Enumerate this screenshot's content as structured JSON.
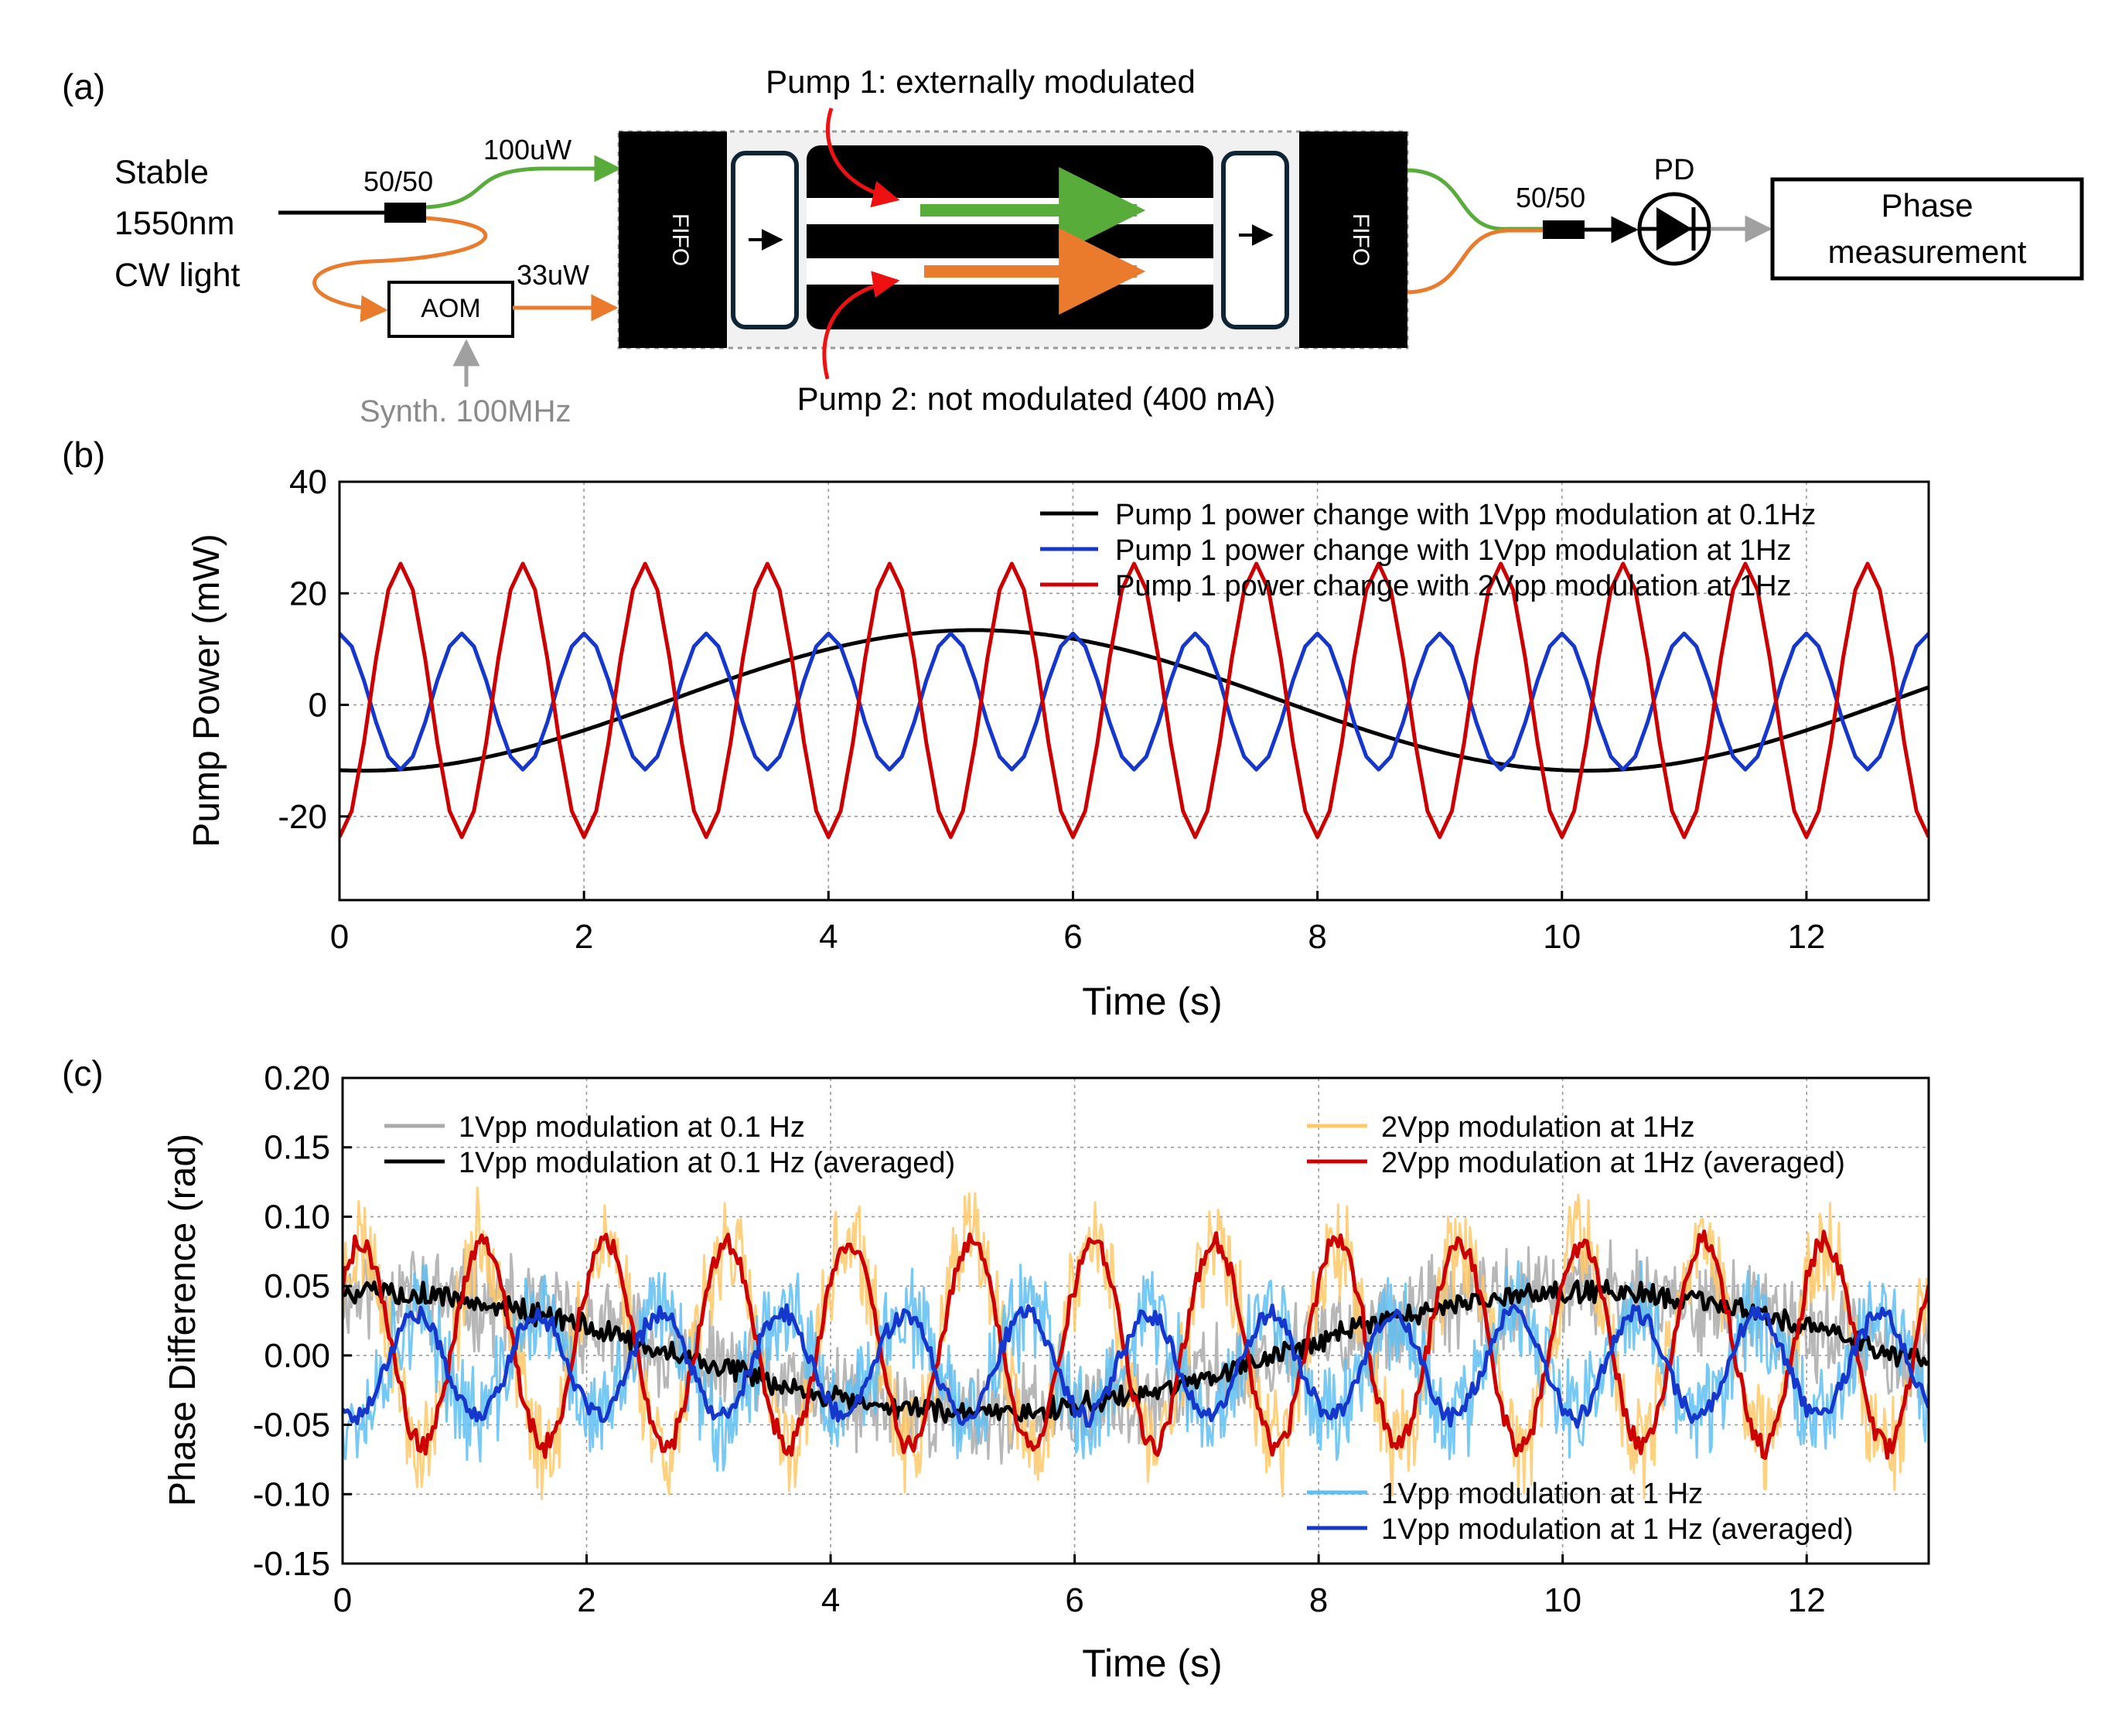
{
  "panel_labels": {
    "a": "(a)",
    "b": "(b)",
    "c": "(c)"
  },
  "diagram": {
    "source_label": [
      "Stable",
      "1550nm",
      "CW light"
    ],
    "splitter_in_label": "50/50",
    "splitter_out_label": "50/50",
    "power_upper_label": "100uW",
    "power_lower_label": "33uW",
    "aom_label": "AOM",
    "synth_label": "Synth. 100MHz",
    "fifo_left_label": "FIFO",
    "fifo_right_label": "FIFO",
    "pump1_label": "Pump 1: externally modulated",
    "pump2_label": "Pump 2: not modulated (400 mA)",
    "pd_label": "PD",
    "phase_box_label": [
      "Phase",
      "measurement"
    ]
  },
  "colors": {
    "black": "#000000",
    "blue": "#1537cc",
    "red": "#cc0000",
    "gray": "#aaaaaa",
    "orange_light": "#ffc968",
    "lightblue": "#5ec0f2",
    "green": "#58ad3a",
    "orange": "#ea7b2c",
    "arrow_red": "#ee1111"
  },
  "chart_data": [
    {
      "id": "b",
      "type": "line",
      "xlabel": "Time (s)",
      "ylabel": "Pump Power (mW)",
      "xlim": [
        0,
        13
      ],
      "ylim": [
        -35,
        40
      ],
      "xticks": [
        0,
        2,
        4,
        6,
        8,
        10,
        12
      ],
      "yticks": [
        -20,
        0,
        20,
        40
      ],
      "grid": true,
      "legend_position": "top-right",
      "series": [
        {
          "name": "Pump 1 power change with 1Vpp modulation at 0.1Hz",
          "color": "#000000",
          "freq_hz": 0.1,
          "amplitude": 12.6,
          "offset": 0.8,
          "phase_peak_s": 5.2,
          "sample_dt": 0.02
        },
        {
          "name": "Pump 1 power change with 1Vpp modulation at 1Hz",
          "color": "#1537cc",
          "freq_hz": 1.0,
          "amplitude": 12.2,
          "offset": 0.6,
          "phase_peak_s": 0.0,
          "sample_dt": 0.1
        },
        {
          "name": "Pump 1 power change with 2Vpp modulation at 1Hz",
          "color": "#cc0000",
          "freq_hz": 1.0,
          "amplitude": 24.5,
          "offset": 0.8,
          "phase_peak_s": 0.5,
          "sample_dt": 0.1
        }
      ]
    },
    {
      "id": "c",
      "type": "line",
      "xlabel": "Time (s)",
      "ylabel": "Phase Difference (rad)",
      "xlim": [
        0,
        13
      ],
      "ylim": [
        -0.15,
        0.2
      ],
      "xticks": [
        0,
        2,
        4,
        6,
        8,
        10,
        12
      ],
      "yticks": [
        -0.15,
        -0.1,
        -0.05,
        0.0,
        0.05,
        0.1,
        0.15,
        0.2
      ],
      "ytick_labels": [
        "-0.15",
        "-0.10",
        "-0.05",
        "0.00",
        "0.05",
        "0.10",
        "0.15",
        "0.20"
      ],
      "grid": true,
      "legend_positions": [
        "top-left",
        "top-right",
        "bottom-right"
      ],
      "series": [
        {
          "name": "1Vpp modulation at 0.1 Hz",
          "color": "#aaaaaa",
          "freq_hz": 0.1,
          "amplitude": 0.044,
          "offset": 0.002,
          "phase_peak_s": 0.2,
          "noise": 0.05,
          "seed": 11
        },
        {
          "name": "2Vpp modulation at 1Hz",
          "color": "#ffc968",
          "freq_hz": 1.0,
          "amplitude": 0.074,
          "offset": 0.008,
          "phase_peak_s": 0.15,
          "noise": 0.055,
          "seed": 23
        },
        {
          "name": "1Vpp modulation at 1 Hz",
          "color": "#5ec0f2",
          "freq_hz": 1.0,
          "amplitude": 0.037,
          "offset": -0.007,
          "phase_peak_s": 0.6,
          "noise": 0.055,
          "seed": 37
        },
        {
          "name": "1Vpp modulation at 0.1 Hz (averaged)",
          "color": "#000000",
          "freq_hz": 0.1,
          "amplitude": 0.044,
          "offset": 0.002,
          "phase_peak_s": 0.2,
          "noise": 0.012,
          "seed": 5
        },
        {
          "name": "2Vpp modulation at 1Hz (averaged)",
          "color": "#cc0000",
          "freq_hz": 1.0,
          "amplitude": 0.074,
          "offset": 0.008,
          "phase_peak_s": 0.15,
          "noise": 0.012,
          "seed": 9
        },
        {
          "name": "1Vpp modulation at 1 Hz (averaged)",
          "color": "#1537cc",
          "freq_hz": 1.0,
          "amplitude": 0.037,
          "offset": -0.007,
          "phase_peak_s": 0.6,
          "noise": 0.01,
          "seed": 17
        }
      ]
    }
  ]
}
